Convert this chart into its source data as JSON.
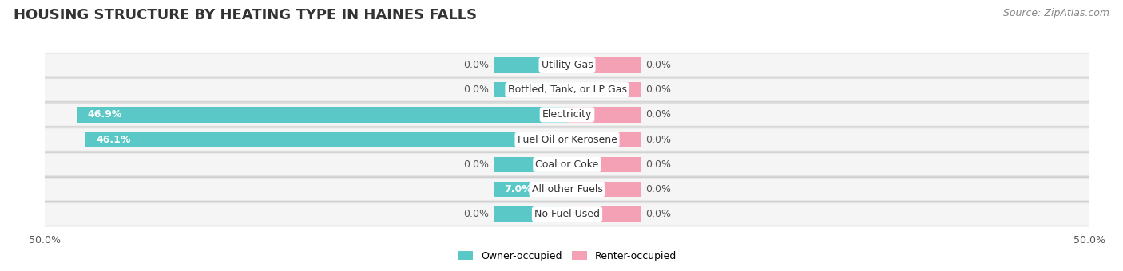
{
  "title": "HOUSING STRUCTURE BY HEATING TYPE IN HAINES FALLS",
  "source": "Source: ZipAtlas.com",
  "categories": [
    "Utility Gas",
    "Bottled, Tank, or LP Gas",
    "Electricity",
    "Fuel Oil or Kerosene",
    "Coal or Coke",
    "All other Fuels",
    "No Fuel Used"
  ],
  "owner_values": [
    0.0,
    0.0,
    46.9,
    46.1,
    0.0,
    7.0,
    0.0
  ],
  "renter_values": [
    0.0,
    0.0,
    0.0,
    0.0,
    0.0,
    0.0,
    0.0
  ],
  "owner_color": "#5BC8C8",
  "renter_color": "#F4A0B5",
  "owner_label": "Owner-occupied",
  "renter_label": "Renter-occupied",
  "xlim": 50.0,
  "min_bar_width": 7.0,
  "bar_height": 0.62,
  "row_bg_color": "#E8E8E8",
  "row_bg_inner": "#F0F0F0",
  "title_fontsize": 13,
  "source_fontsize": 9,
  "label_fontsize": 9,
  "legend_fontsize": 9,
  "axis_label_fontsize": 9,
  "value_label_fontsize": 9
}
